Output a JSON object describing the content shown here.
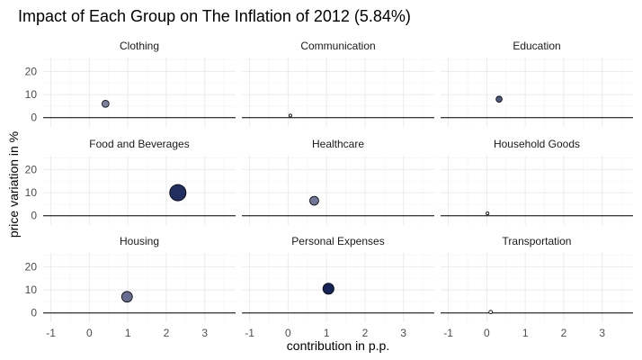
{
  "chart_data": {
    "type": "scatter",
    "title": "Impact of Each Group on The Inflation of 2012 (5.84%)",
    "xlabel": "contribution in p.p.",
    "ylabel": "price variation in %",
    "xlim": [
      -1.2,
      3.8
    ],
    "ylim": [
      -4,
      26
    ],
    "x_ticks": [
      -1,
      0,
      1,
      2,
      3
    ],
    "y_ticks": [
      0,
      10,
      20
    ],
    "reference_line_y": 0,
    "facet_layout": {
      "columns": 3,
      "rows": 3
    },
    "color_scale": {
      "low": "#ffffff",
      "high": "#162458"
    },
    "grid": true,
    "legend": "none",
    "facets": [
      {
        "name": "Clothing",
        "x": 0.42,
        "y": 6.0
      },
      {
        "name": "Communication",
        "x": 0.06,
        "y": 0.9
      },
      {
        "name": "Education",
        "x": 0.32,
        "y": 8.0
      },
      {
        "name": "Food and Beverages",
        "x": 2.3,
        "y": 10.0
      },
      {
        "name": "Healthcare",
        "x": 0.68,
        "y": 6.5
      },
      {
        "name": "Household Goods",
        "x": 0.02,
        "y": 1.0
      },
      {
        "name": "Housing",
        "x": 0.98,
        "y": 7.0
      },
      {
        "name": "Personal Expenses",
        "x": 1.05,
        "y": 10.5
      },
      {
        "name": "Transportation",
        "x": 0.1,
        "y": 0.4
      }
    ]
  }
}
